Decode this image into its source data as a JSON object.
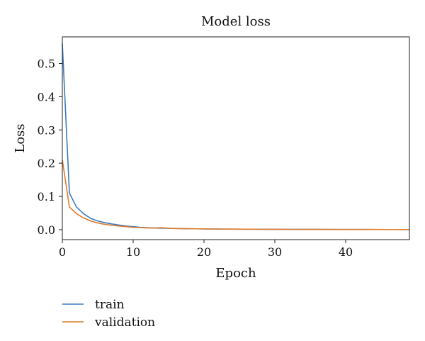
{
  "chart_data": {
    "type": "line",
    "title": "Model loss",
    "xlabel": "Epoch",
    "ylabel": "Loss",
    "xlim": [
      0,
      49
    ],
    "ylim": [
      -0.03,
      0.58
    ],
    "xticks": [
      0,
      10,
      20,
      30,
      40
    ],
    "yticks": [
      0.0,
      0.1,
      0.2,
      0.3,
      0.4,
      0.5
    ],
    "xtick_labels": [
      "0",
      "10",
      "20",
      "30",
      "40"
    ],
    "ytick_labels": [
      "0.0",
      "0.1",
      "0.2",
      "0.3",
      "0.4",
      "0.5"
    ],
    "grid": false,
    "legend_position": "bottom-left",
    "x": [
      0,
      1,
      2,
      3,
      4,
      5,
      6,
      7,
      8,
      9,
      10,
      11,
      12,
      13,
      14,
      15,
      16,
      17,
      18,
      19,
      20,
      21,
      22,
      23,
      24,
      25,
      26,
      27,
      28,
      29,
      30,
      31,
      32,
      33,
      34,
      35,
      36,
      37,
      38,
      39,
      40,
      41,
      42,
      43,
      44,
      45,
      46,
      47,
      48,
      49
    ],
    "series": [
      {
        "name": "train",
        "color": "#3b7bbf",
        "values": [
          0.56,
          0.11,
          0.068,
          0.048,
          0.034,
          0.026,
          0.021,
          0.017,
          0.014,
          0.011,
          0.009,
          0.007,
          0.006,
          0.005,
          0.0045,
          0.004,
          0.0035,
          0.003,
          0.0028,
          0.0025,
          0.0022,
          0.002,
          0.0018,
          0.0016,
          0.0015,
          0.0014,
          0.0013,
          0.0012,
          0.0011,
          0.001,
          0.001,
          0.0009,
          0.0009,
          0.0008,
          0.0008,
          0.0007,
          0.0007,
          0.0006,
          0.0006,
          0.0006,
          0.0005,
          0.0005,
          0.0005,
          0.0005,
          0.0004,
          0.0004,
          0.0004,
          0.0004,
          0.0003,
          0.0003
        ]
      },
      {
        "name": "validation",
        "color": "#e07b2a",
        "values": [
          0.21,
          0.068,
          0.048,
          0.035,
          0.026,
          0.02,
          0.016,
          0.013,
          0.011,
          0.009,
          0.007,
          0.006,
          0.005,
          0.005,
          0.006,
          0.004,
          0.0035,
          0.003,
          0.0028,
          0.0025,
          0.0023,
          0.002,
          0.0018,
          0.0017,
          0.0016,
          0.0015,
          0.0014,
          0.0013,
          0.0012,
          0.0011,
          0.001,
          0.001,
          0.0009,
          0.0009,
          0.0008,
          0.0008,
          0.0007,
          0.0007,
          0.0007,
          0.0006,
          0.0006,
          0.0006,
          0.0005,
          0.0005,
          0.0005,
          0.0005,
          0.0004,
          0.0004,
          0.0004,
          0.0004
        ]
      }
    ]
  }
}
